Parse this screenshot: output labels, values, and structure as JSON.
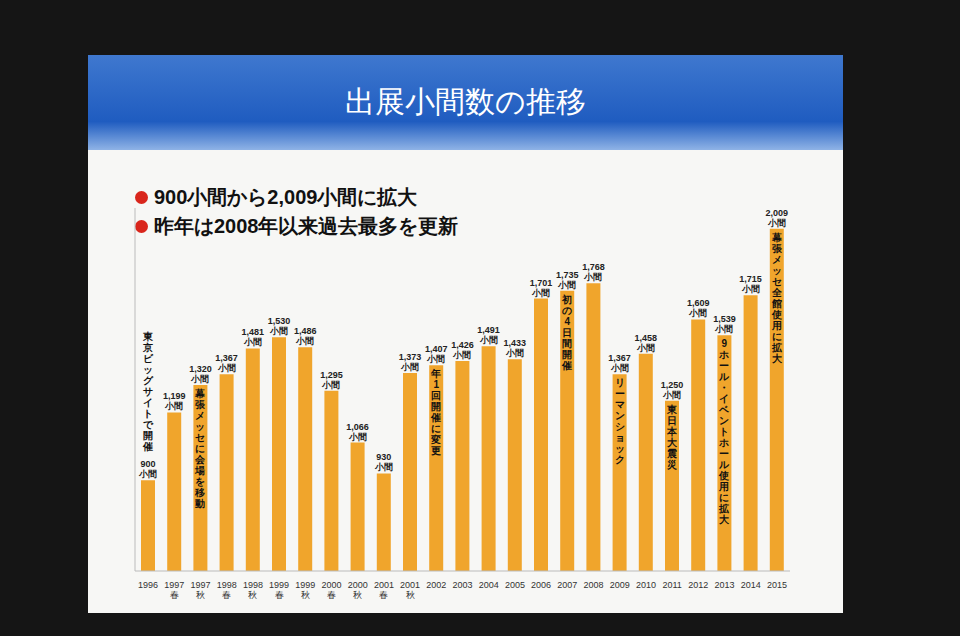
{
  "chart_data": {
    "type": "bar",
    "title": "出展小間数の推移",
    "bullets": [
      "900小間から2,009小間に拡大",
      "昨年は2008年以来過去最多を更新"
    ],
    "categories": [
      "1996",
      "1997 春",
      "1997 秋",
      "1998 春",
      "1998 秋",
      "1999 春",
      "1999 秋",
      "2000 春",
      "2000 秋",
      "2001 春",
      "2001 秋",
      "2002",
      "2003",
      "2004",
      "2005",
      "2006",
      "2007",
      "2008",
      "2009",
      "2010",
      "2011",
      "2012",
      "2013",
      "2014",
      "2015"
    ],
    "values": [
      900,
      1199,
      1320,
      1367,
      1481,
      1530,
      1486,
      1295,
      1066,
      930,
      1373,
      1407,
      1426,
      1491,
      1433,
      1701,
      1735,
      1768,
      1367,
      1458,
      1250,
      1609,
      1539,
      1715,
      2009
    ],
    "value_labels": [
      "900小間",
      "1,199小間",
      "1,320小間",
      "1,367小間",
      "1,481小間",
      "1,530小間",
      "1,486小間",
      "1,295小間",
      "1,066小間",
      "930小間",
      "1,373小間",
      "1,407小間",
      "1,426小間",
      "1,491小間",
      "1,433小間",
      "1,701小間",
      "1,735小間",
      "1,768小間",
      "1,367小間",
      "1,458小間",
      "1,250小間",
      "1,609小間",
      "1,539小間",
      "1,715小間",
      "2,009小間"
    ],
    "annotations": [
      {
        "category": "1996",
        "text": "東京ビッグサイトで開催"
      },
      {
        "category": "1997 秋",
        "text": "幕張メッセに会場を移動"
      },
      {
        "category": "2002",
        "text": "年1回開催に変更"
      },
      {
        "category": "2007",
        "text": "初の4日間開催"
      },
      {
        "category": "2009",
        "text": "リーマンショック"
      },
      {
        "category": "2011",
        "text": "東日本大震災"
      },
      {
        "category": "2013",
        "text": "9ホール・イベントホール使用に拡大"
      },
      {
        "category": "2015",
        "text": "幕張メッセ全館使用に拡大"
      }
    ],
    "color": "#f0a52c",
    "ylim": [
      500,
      2100
    ],
    "grid": false,
    "data_labels": true,
    "tick_labels": "x"
  }
}
